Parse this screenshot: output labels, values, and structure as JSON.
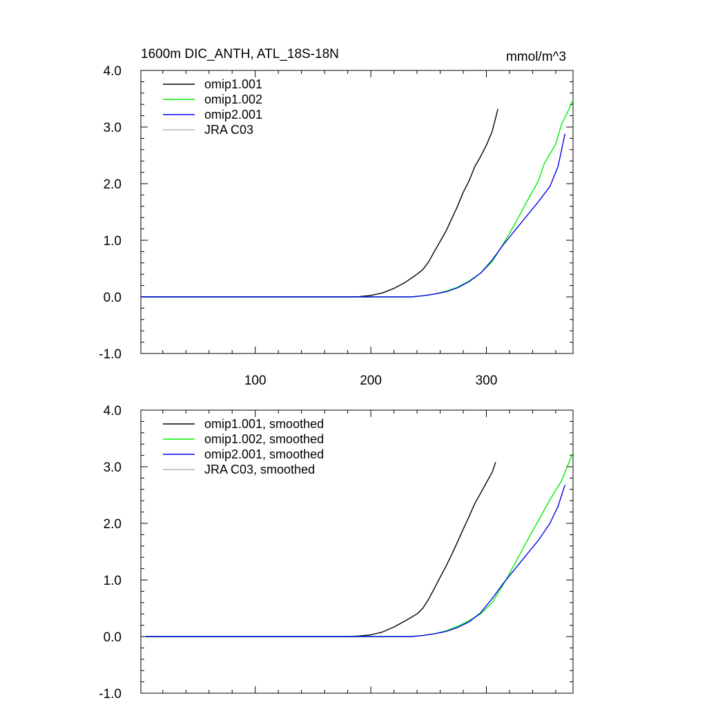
{
  "chart_data": [
    {
      "type": "line",
      "title": "1600m DIC_ANTH, ATL_18S-18N",
      "units": "mmol/m^3",
      "xlim": [
        1,
        375
      ],
      "ylim": [
        -1.0,
        4.0
      ],
      "x_ticks": [
        100,
        200,
        300
      ],
      "x_tick_labels": [
        "100",
        "200",
        "300"
      ],
      "y_ticks": [
        -1.0,
        0.0,
        1.0,
        2.0,
        3.0,
        4.0
      ],
      "y_tick_labels": [
        "-1.0",
        "0.0",
        "1.0",
        "2.0",
        "3.0",
        "4.0"
      ],
      "legend": "top-left",
      "series": [
        {
          "name": "omip1.001",
          "color": "#000000",
          "points": [
            [
              1,
              0
            ],
            [
              180,
              0
            ],
            [
              190,
              0.005
            ],
            [
              200,
              0.025
            ],
            [
              210,
              0.07
            ],
            [
              220,
              0.15
            ],
            [
              230,
              0.26
            ],
            [
              240,
              0.4
            ],
            [
              245,
              0.48
            ],
            [
              250,
              0.62
            ],
            [
              255,
              0.8
            ],
            [
              260,
              0.98
            ],
            [
              265,
              1.16
            ],
            [
              270,
              1.38
            ],
            [
              275,
              1.6
            ],
            [
              280,
              1.85
            ],
            [
              285,
              2.05
            ],
            [
              290,
              2.3
            ],
            [
              295,
              2.48
            ],
            [
              300,
              2.68
            ],
            [
              305,
              2.92
            ],
            [
              310,
              3.32
            ]
          ]
        },
        {
          "name": "omip1.002",
          "color": "#00ee00",
          "points": [
            [
              1,
              0
            ],
            [
              235,
              0
            ],
            [
              245,
              0.02
            ],
            [
              255,
              0.05
            ],
            [
              265,
              0.1
            ],
            [
              275,
              0.17
            ],
            [
              285,
              0.28
            ],
            [
              295,
              0.42
            ],
            [
              305,
              0.62
            ],
            [
              315,
              0.95
            ],
            [
              325,
              1.3
            ],
            [
              335,
              1.68
            ],
            [
              345,
              2.05
            ],
            [
              350,
              2.35
            ],
            [
              360,
              2.7
            ],
            [
              365,
              3.05
            ],
            [
              370,
              3.25
            ],
            [
              375,
              3.48
            ]
          ]
        },
        {
          "name": "omip2.001",
          "color": "#0000ee",
          "points": [
            [
              1,
              0
            ],
            [
              235,
              0
            ],
            [
              245,
              0.02
            ],
            [
              255,
              0.05
            ],
            [
              265,
              0.09
            ],
            [
              275,
              0.16
            ],
            [
              285,
              0.27
            ],
            [
              295,
              0.42
            ],
            [
              305,
              0.65
            ],
            [
              315,
              0.93
            ],
            [
              325,
              1.18
            ],
            [
              335,
              1.43
            ],
            [
              345,
              1.68
            ],
            [
              355,
              1.95
            ],
            [
              362,
              2.3
            ],
            [
              368,
              2.88
            ]
          ]
        },
        {
          "name": "JRA C03",
          "color": "#b3b3b3",
          "points": []
        }
      ]
    },
    {
      "type": "line",
      "title": "",
      "xlim": [
        1,
        375
      ],
      "ylim": [
        -1.0,
        4.0
      ],
      "x_ticks": [
        100,
        200,
        300
      ],
      "y_ticks": [
        -1.0,
        0.0,
        1.0,
        2.0,
        3.0,
        4.0
      ],
      "y_tick_labels": [
        "-1.0",
        "0.0",
        "1.0",
        "2.0",
        "3.0",
        "4.0"
      ],
      "legend": "top-left",
      "series": [
        {
          "name": "omip1.001, smoothed",
          "color": "#000000",
          "points": [
            [
              5,
              0
            ],
            [
              180,
              0
            ],
            [
              190,
              0.01
            ],
            [
              200,
              0.03
            ],
            [
              210,
              0.08
            ],
            [
              220,
              0.17
            ],
            [
              230,
              0.28
            ],
            [
              240,
              0.4
            ],
            [
              245,
              0.5
            ],
            [
              250,
              0.66
            ],
            [
              255,
              0.85
            ],
            [
              260,
              1.05
            ],
            [
              265,
              1.24
            ],
            [
              270,
              1.45
            ],
            [
              275,
              1.67
            ],
            [
              280,
              1.9
            ],
            [
              285,
              2.12
            ],
            [
              290,
              2.35
            ],
            [
              295,
              2.53
            ],
            [
              300,
              2.72
            ],
            [
              305,
              2.9
            ],
            [
              308,
              3.08
            ]
          ]
        },
        {
          "name": "omip1.002, smoothed",
          "color": "#00ee00",
          "points": [
            [
              5,
              0
            ],
            [
              235,
              0
            ],
            [
              245,
              0.02
            ],
            [
              255,
              0.05
            ],
            [
              265,
              0.1
            ],
            [
              275,
              0.18
            ],
            [
              285,
              0.28
            ],
            [
              295,
              0.4
            ],
            [
              305,
              0.6
            ],
            [
              315,
              0.93
            ],
            [
              325,
              1.3
            ],
            [
              335,
              1.68
            ],
            [
              345,
              2.05
            ],
            [
              355,
              2.42
            ],
            [
              365,
              2.75
            ],
            [
              375,
              3.25
            ]
          ]
        },
        {
          "name": "omip2.001, smoothed",
          "color": "#0000ee",
          "points": [
            [
              5,
              0
            ],
            [
              235,
              0
            ],
            [
              245,
              0.02
            ],
            [
              255,
              0.05
            ],
            [
              265,
              0.09
            ],
            [
              275,
              0.16
            ],
            [
              285,
              0.26
            ],
            [
              295,
              0.42
            ],
            [
              305,
              0.67
            ],
            [
              315,
              0.95
            ],
            [
              325,
              1.2
            ],
            [
              335,
              1.45
            ],
            [
              345,
              1.7
            ],
            [
              355,
              2.0
            ],
            [
              362,
              2.3
            ],
            [
              368,
              2.68
            ]
          ]
        },
        {
          "name": "JRA C03, smoothed",
          "color": "#b3b3b3",
          "points": []
        }
      ]
    }
  ]
}
